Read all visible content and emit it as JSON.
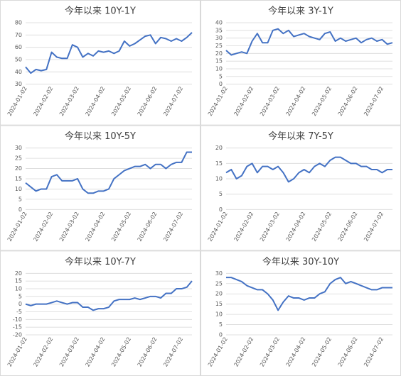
{
  "chart_data": [
    {
      "type": "line",
      "title": "今年以来 10Y-1Y",
      "color": "#4472c4",
      "grid": true,
      "categories": [
        "2024-01-02",
        null,
        null,
        null,
        null,
        "2024-02-02",
        null,
        null,
        null,
        null,
        "2024-03-02",
        null,
        null,
        null,
        null,
        "2024-04-02",
        null,
        null,
        null,
        null,
        "2024-05-02",
        null,
        null,
        null,
        null,
        "2024-06-02",
        null,
        null,
        null,
        null,
        "2024-07-02",
        null,
        null
      ],
      "values": [
        44,
        39,
        42,
        41,
        42,
        56,
        52,
        51,
        51,
        62,
        60,
        52,
        55,
        53,
        57,
        56,
        57,
        55,
        57,
        65,
        61,
        63,
        66,
        69,
        70,
        63,
        68,
        67,
        65,
        67,
        65,
        68,
        72
      ],
      "ylim": [
        30,
        80
      ],
      "yticks": [
        30,
        40,
        50,
        60,
        70,
        80
      ]
    },
    {
      "type": "line",
      "title": "今年以来 3Y-1Y",
      "color": "#4472c4",
      "grid": true,
      "categories": [
        "2024-01-02",
        null,
        null,
        null,
        null,
        "2024-02-02",
        null,
        null,
        null,
        null,
        "2024-03-02",
        null,
        null,
        null,
        null,
        "2024-04-02",
        null,
        null,
        null,
        null,
        "2024-05-02",
        null,
        null,
        null,
        null,
        "2024-06-02",
        null,
        null,
        null,
        null,
        "2024-07-02",
        null,
        null
      ],
      "values": [
        22,
        19,
        20,
        21,
        20,
        28,
        33,
        27,
        27,
        35,
        36,
        33,
        35,
        31,
        32,
        33,
        31,
        30,
        29,
        33,
        34,
        28,
        30,
        28,
        29,
        30,
        27,
        29,
        30,
        28,
        29,
        26,
        27
      ],
      "ylim": [
        0,
        40
      ],
      "yticks": [
        0,
        5,
        10,
        15,
        20,
        25,
        30,
        35,
        40
      ]
    },
    {
      "type": "line",
      "title": "今年以来 10Y-5Y",
      "color": "#4472c4",
      "grid": true,
      "categories": [
        "2024-01-02",
        null,
        null,
        null,
        null,
        "2024-02-02",
        null,
        null,
        null,
        null,
        "2024-03-02",
        null,
        null,
        null,
        null,
        "2024-04-02",
        null,
        null,
        null,
        null,
        "2024-05-02",
        null,
        null,
        null,
        null,
        "2024-06-02",
        null,
        null,
        null,
        null,
        "2024-07-02",
        null,
        null
      ],
      "values": [
        13,
        11,
        9,
        10,
        10,
        16,
        17,
        14,
        14,
        14,
        15,
        10,
        8,
        8,
        9,
        9,
        10,
        15,
        17,
        19,
        20,
        21,
        21,
        22,
        20,
        22,
        22,
        20,
        22,
        23,
        23,
        28,
        28
      ],
      "ylim": [
        0,
        30
      ],
      "yticks": [
        0,
        5,
        10,
        15,
        20,
        25,
        30
      ]
    },
    {
      "type": "line",
      "title": "今年以来 7Y-5Y",
      "color": "#4472c4",
      "grid": true,
      "categories": [
        "2024-01-02",
        null,
        null,
        null,
        null,
        "2024-02-02",
        null,
        null,
        null,
        null,
        "2024-03-02",
        null,
        null,
        null,
        null,
        "2024-04-02",
        null,
        null,
        null,
        null,
        "2024-05-02",
        null,
        null,
        null,
        null,
        "2024-06-02",
        null,
        null,
        null,
        null,
        "2024-07-02",
        null,
        null
      ],
      "values": [
        12,
        13,
        10,
        11,
        14,
        15,
        12,
        14,
        14,
        13,
        14,
        12,
        9,
        10,
        12,
        13,
        12,
        14,
        15,
        14,
        16,
        17,
        17,
        16,
        15,
        15,
        14,
        14,
        13,
        13,
        12,
        13,
        13
      ],
      "ylim": [
        0,
        20
      ],
      "yticks": [
        0,
        5,
        10,
        15,
        20
      ]
    },
    {
      "type": "line",
      "title": "今年以来 10Y-7Y",
      "color": "#4472c4",
      "grid": true,
      "categories": [
        "2024-01-02",
        null,
        null,
        null,
        null,
        "2024-02-02",
        null,
        null,
        null,
        null,
        "2024-03-02",
        null,
        null,
        null,
        null,
        "2024-04-02",
        null,
        null,
        null,
        null,
        "2024-05-02",
        null,
        null,
        null,
        null,
        "2024-06-02",
        null,
        null,
        null,
        null,
        "2024-07-02",
        null,
        null
      ],
      "values": [
        0,
        -1,
        0,
        0,
        0,
        1,
        2,
        1,
        0,
        1,
        1,
        -2,
        -2,
        -4,
        -3,
        -3,
        -2,
        2,
        3,
        3,
        3,
        4,
        3,
        4,
        5,
        5,
        4,
        7,
        7,
        10,
        10,
        11,
        15
      ],
      "ylim": [
        -20,
        20
      ],
      "yticks": [
        -20,
        -15,
        -10,
        -5,
        0,
        5,
        10,
        15,
        20
      ]
    },
    {
      "type": "line",
      "title": "今年以来 30Y-10Y",
      "color": "#4472c4",
      "grid": true,
      "categories": [
        "2024-01-02",
        null,
        null,
        null,
        null,
        "2024-02-02",
        null,
        null,
        null,
        null,
        "2024-03-02",
        null,
        null,
        null,
        null,
        "2024-04-02",
        null,
        null,
        null,
        null,
        "2024-05-02",
        null,
        null,
        null,
        null,
        "2024-06-02",
        null,
        null,
        null,
        null,
        "2024-07-02",
        null,
        null
      ],
      "values": [
        28,
        28,
        27,
        26,
        24,
        23,
        22,
        22,
        20,
        17,
        12,
        16,
        19,
        18,
        18,
        17,
        18,
        18,
        20,
        21,
        25,
        27,
        28,
        25,
        26,
        25,
        24,
        23,
        22,
        22,
        23,
        23,
        23
      ],
      "ylim": [
        0,
        30
      ],
      "yticks": [
        0,
        5,
        10,
        15,
        20,
        25,
        30
      ]
    }
  ]
}
